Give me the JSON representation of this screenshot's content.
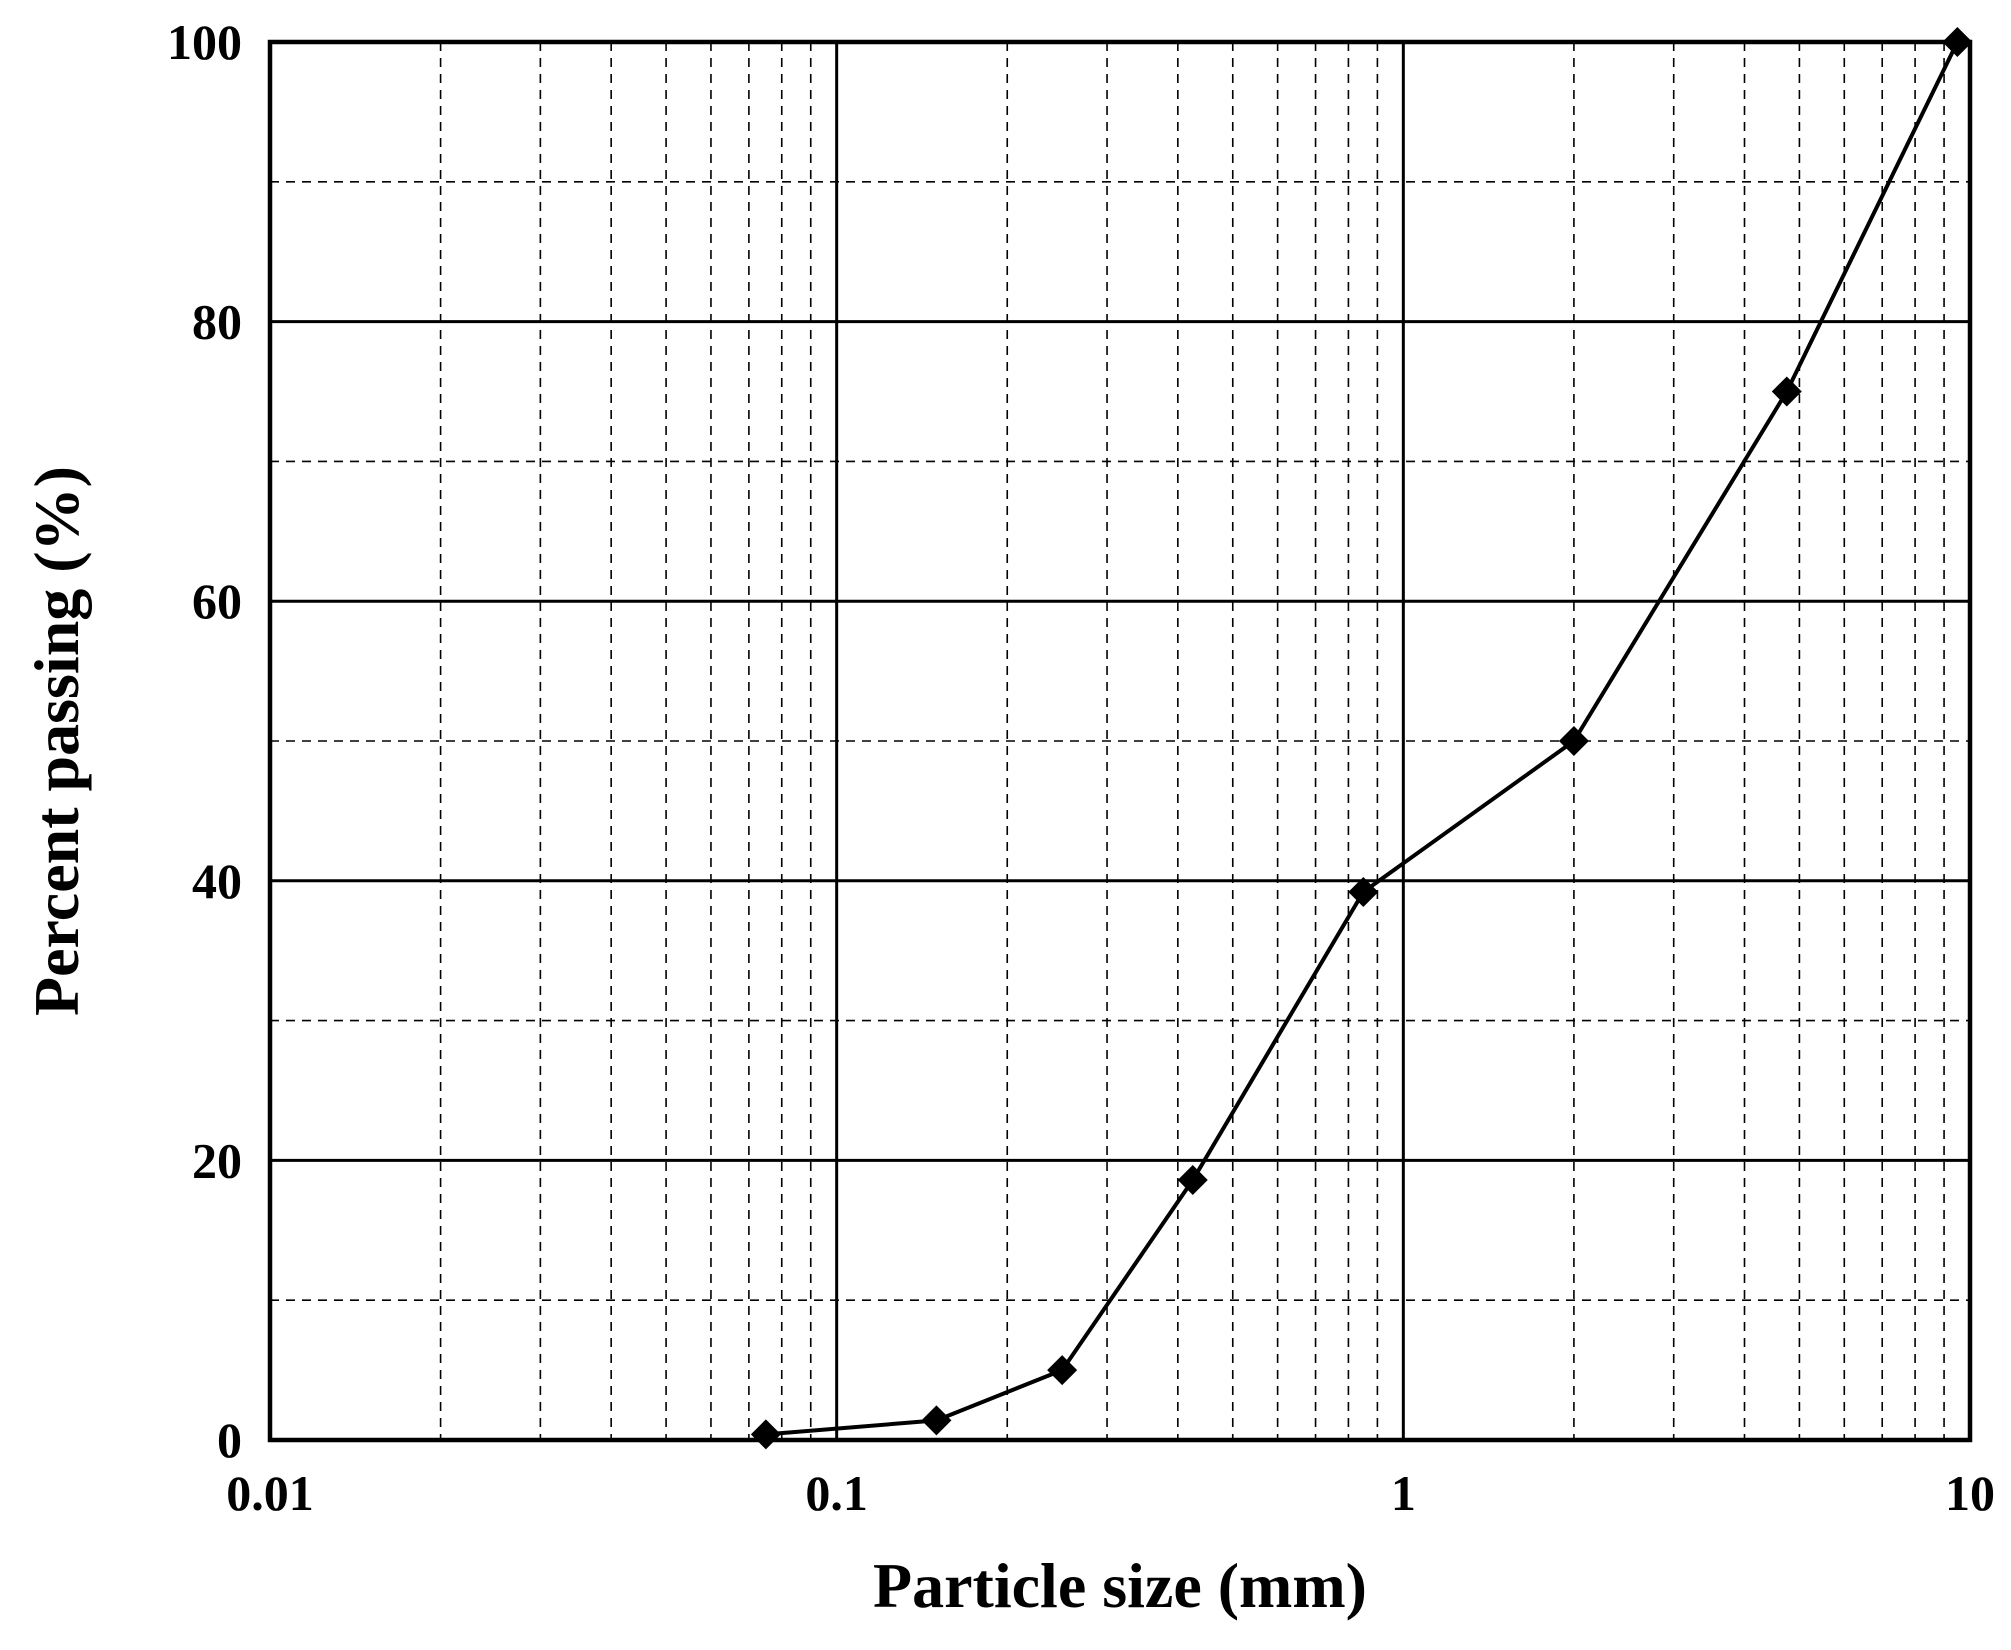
{
  "chart_data": {
    "type": "line",
    "title": "",
    "xlabel": "Particle size (mm)",
    "ylabel": "Percent passing (%)",
    "x_scale": "log",
    "xlim": [
      0.01,
      10
    ],
    "ylim": [
      0,
      100
    ],
    "x_major_ticks": [
      0.01,
      0.1,
      1,
      10
    ],
    "x_tick_labels": [
      "0.01",
      "0.1",
      "1",
      "10"
    ],
    "y_major_ticks": [
      0,
      20,
      40,
      60,
      80,
      100
    ],
    "y_tick_labels": [
      "0",
      "20",
      "40",
      "60",
      "80",
      "100"
    ],
    "y_minor_ticks": [
      10,
      30,
      50,
      70,
      90
    ],
    "grid": true,
    "legend": "none",
    "marker": "diamond",
    "series": [
      {
        "color": "#000000",
        "x": [
          0.075,
          0.15,
          0.25,
          0.425,
          0.85,
          2.0,
          4.75,
          9.5
        ],
        "y": [
          0.4,
          1.4,
          5.0,
          18.6,
          39.2,
          50.0,
          75.0,
          100.0
        ]
      }
    ]
  }
}
